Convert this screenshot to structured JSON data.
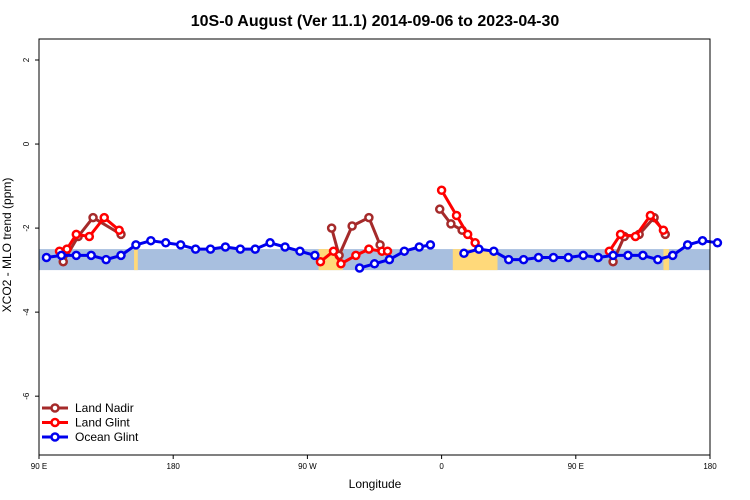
{
  "chart_data": {
    "type": "line",
    "title": "10S-0 August (Ver 11.1)   2014-09-06 to 2023-04-30",
    "xlabel": "Longitude",
    "ylabel": "XCO2 - MLO trend (ppm)",
    "xlim": [
      90,
      450
    ],
    "ylim": [
      -7.4,
      2.5
    ],
    "x_ticks": [
      {
        "value": 90,
        "label": "90 E"
      },
      {
        "value": 162,
        "label": "180"
      },
      {
        "value": 234,
        "label": "90 W"
      },
      {
        "value": 306,
        "label": "0"
      },
      {
        "value": 378,
        "label": "90 E"
      },
      {
        "value": 450,
        "label": "180"
      }
    ],
    "y_ticks": [
      {
        "value": 2,
        "label": "2"
      },
      {
        "value": 0,
        "label": "0"
      },
      {
        "value": -2,
        "label": "-2"
      },
      {
        "value": -4,
        "label": "-4"
      },
      {
        "value": -6,
        "label": "-6"
      }
    ],
    "background_band": {
      "y_top": -2.5,
      "y_bottom": -3.0,
      "ocean_color": "#a8bfdf",
      "land_color": "#ffd97a"
    },
    "land_segments": [
      [
        141,
        143
      ],
      [
        240,
        253
      ],
      [
        312,
        336
      ],
      [
        425,
        428
      ]
    ],
    "legend_position": "bottom-left",
    "series": [
      {
        "name": "Land Nadir",
        "color": "#a52a2a",
        "segments": [
          [
            [
              103,
              -2.8
            ],
            [
              111,
              -2.2
            ],
            [
              119,
              -1.75
            ],
            [
              134,
              -2.15
            ]
          ],
          [
            [
              247,
              -2.0
            ],
            [
              251,
              -2.65
            ],
            [
              258,
              -1.95
            ],
            [
              267,
              -1.75
            ],
            [
              273,
              -2.4
            ]
          ],
          [
            [
              305,
              -1.55
            ],
            [
              311,
              -1.9
            ],
            [
              317,
              -2.05
            ]
          ],
          [
            [
              398,
              -2.8
            ],
            [
              404,
              -2.2
            ],
            [
              412,
              -2.15
            ],
            [
              420,
              -1.75
            ],
            [
              426,
              -2.15
            ]
          ]
        ]
      },
      {
        "name": "Land Glint",
        "color": "#ff0000",
        "segments": [
          [
            [
              101,
              -2.55
            ],
            [
              105,
              -2.5
            ],
            [
              110,
              -2.15
            ],
            [
              117,
              -2.2
            ],
            [
              125,
              -1.75
            ],
            [
              133,
              -2.05
            ]
          ],
          [
            [
              241,
              -2.8
            ],
            [
              248,
              -2.55
            ],
            [
              252,
              -2.85
            ],
            [
              260,
              -2.65
            ],
            [
              267,
              -2.5
            ],
            [
              274,
              -2.55
            ],
            [
              277,
              -2.55
            ]
          ],
          [
            [
              306,
              -1.1
            ],
            [
              314,
              -1.7
            ],
            [
              320,
              -2.15
            ],
            [
              324,
              -2.35
            ]
          ],
          [
            [
              396,
              -2.55
            ],
            [
              402,
              -2.15
            ],
            [
              410,
              -2.2
            ],
            [
              418,
              -1.7
            ],
            [
              425,
              -2.05
            ]
          ]
        ]
      },
      {
        "name": "Ocean Glint",
        "color": "#0000ee",
        "segments": [
          [
            [
              94,
              -2.7
            ],
            [
              102,
              -2.65
            ],
            [
              110,
              -2.65
            ],
            [
              118,
              -2.65
            ],
            [
              126,
              -2.75
            ],
            [
              134,
              -2.65
            ],
            [
              142,
              -2.4
            ],
            [
              150,
              -2.3
            ],
            [
              158,
              -2.35
            ],
            [
              166,
              -2.4
            ],
            [
              174,
              -2.5
            ],
            [
              182,
              -2.5
            ],
            [
              190,
              -2.45
            ],
            [
              198,
              -2.5
            ],
            [
              206,
              -2.5
            ],
            [
              214,
              -2.35
            ],
            [
              222,
              -2.45
            ],
            [
              230,
              -2.55
            ],
            [
              238,
              -2.65
            ]
          ],
          [
            [
              262,
              -2.95
            ],
            [
              270,
              -2.85
            ],
            [
              278,
              -2.75
            ],
            [
              286,
              -2.55
            ],
            [
              294,
              -2.45
            ],
            [
              300,
              -2.4
            ]
          ],
          [
            [
              318,
              -2.6
            ],
            [
              326,
              -2.5
            ],
            [
              334,
              -2.55
            ],
            [
              342,
              -2.75
            ],
            [
              350,
              -2.75
            ],
            [
              358,
              -2.7
            ],
            [
              366,
              -2.7
            ],
            [
              374,
              -2.7
            ],
            [
              382,
              -2.65
            ],
            [
              390,
              -2.7
            ],
            [
              398,
              -2.65
            ],
            [
              406,
              -2.65
            ],
            [
              414,
              -2.65
            ],
            [
              422,
              -2.75
            ],
            [
              430,
              -2.65
            ],
            [
              438,
              -2.4
            ],
            [
              446,
              -2.3
            ],
            [
              454,
              -2.35
            ]
          ]
        ]
      }
    ]
  }
}
